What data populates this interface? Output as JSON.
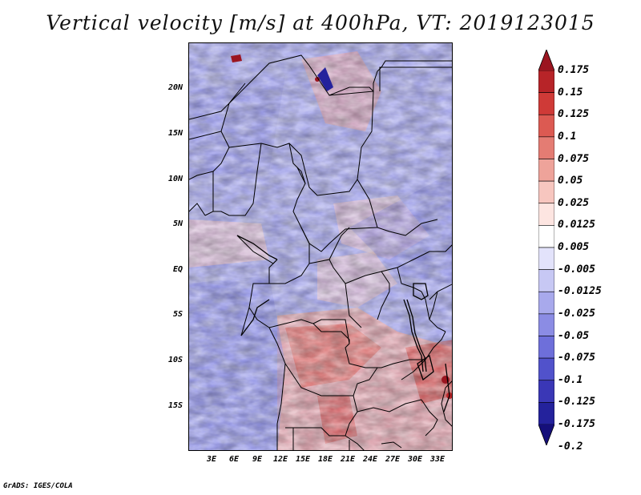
{
  "title": "Vertical velocity [m/s] at 400hPa, VT: 2019123015",
  "map": {
    "lat_labels": [
      "20N",
      "15N",
      "10N",
      "5N",
      "EQ",
      "5S",
      "10S",
      "15S"
    ],
    "lat_values": [
      20,
      15,
      10,
      5,
      0,
      -5,
      -10,
      -15
    ],
    "lon_labels": [
      "3E",
      "6E",
      "9E",
      "12E",
      "15E",
      "18E",
      "21E",
      "24E",
      "27E",
      "30E",
      "33E"
    ],
    "lon_values": [
      3,
      6,
      9,
      12,
      15,
      18,
      21,
      24,
      27,
      30,
      33
    ],
    "lat_range": [
      -19.9,
      24.9
    ],
    "lon_range": [
      0,
      34.5
    ],
    "field": "vertical velocity",
    "level": "400hPa"
  },
  "colorbar": {
    "labels": [
      "0.175",
      "0.15",
      "0.125",
      "0.1",
      "0.075",
      "0.05",
      "0.025",
      "0.0125",
      "0.005",
      "-0.005",
      "-0.0125",
      "-0.025",
      "-0.05",
      "-0.075",
      "-0.1",
      "-0.125",
      "-0.175",
      "-0.2"
    ],
    "colors": [
      "#9b1520",
      "#b72428",
      "#cf3a37",
      "#dc5a52",
      "#e47c73",
      "#eea39a",
      "#f7c6bf",
      "#fde5e1",
      "#ffffff",
      "#e3e3fb",
      "#c7c8f4",
      "#a8a9ec",
      "#8b8ce4",
      "#6e6fda",
      "#5152cb",
      "#3a37b6",
      "#24229c",
      "#150f7a"
    ]
  },
  "footer": "GrADS: IGES/COLA"
}
